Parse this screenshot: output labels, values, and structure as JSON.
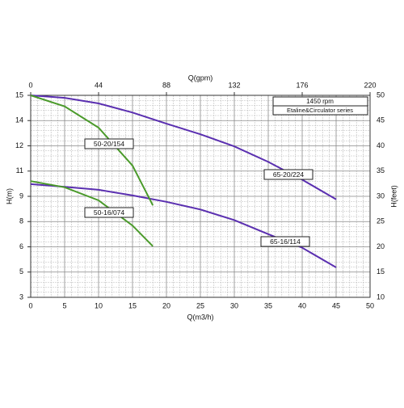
{
  "chart_data": {
    "type": "line",
    "x_label": "Q(m3/h)",
    "x2_label": "Q(gpm)",
    "y_label": "H(m)",
    "y2_label": "H(feet)",
    "xlim": [
      0,
      50
    ],
    "xticks": [
      0,
      5,
      10,
      15,
      20,
      25,
      30,
      35,
      40,
      45,
      50
    ],
    "x2lim": [
      0,
      220
    ],
    "x2ticks": [
      0,
      44,
      88,
      132,
      176,
      220
    ],
    "ylim": [
      3.048,
      15.24
    ],
    "yticks": [
      {
        "value": 3.048,
        "label": "3"
      },
      {
        "value": 4.572,
        "label": "5"
      },
      {
        "value": 6.096,
        "label": "6"
      },
      {
        "value": 7.62,
        "label": "8"
      },
      {
        "value": 9.144,
        "label": "9"
      },
      {
        "value": 10.668,
        "label": "11"
      },
      {
        "value": 12.192,
        "label": "12"
      },
      {
        "value": 13.716,
        "label": "14"
      },
      {
        "value": 15.24,
        "label": "15"
      }
    ],
    "y2lim": [
      10,
      50
    ],
    "y2ticks": [
      10,
      15,
      20,
      25,
      30,
      35,
      40,
      45,
      50
    ],
    "grid": true,
    "annotations": [
      "1450 rpm",
      "Etaline&Circulator series"
    ],
    "series": [
      {
        "name": "65-20/224",
        "color": "#5a2fb0",
        "x": [
          0,
          5,
          10,
          15,
          20,
          25,
          30,
          35,
          40,
          45
        ],
        "values": [
          15.24,
          15.09,
          14.75,
          14.2,
          13.53,
          12.89,
          12.16,
          11.22,
          10.15,
          8.96
        ]
      },
      {
        "name": "65-16/114",
        "color": "#5a2fb0",
        "x": [
          0,
          5,
          10,
          15,
          20,
          25,
          30,
          35,
          40,
          45
        ],
        "values": [
          9.88,
          9.72,
          9.54,
          9.2,
          8.81,
          8.35,
          7.71,
          6.86,
          6.04,
          4.85
        ]
      },
      {
        "name": "50-20/154",
        "color": "#4a9a2a",
        "x": [
          0,
          5,
          10,
          15,
          18
        ],
        "values": [
          15.24,
          14.57,
          13.29,
          11.0,
          8.6
        ]
      },
      {
        "name": "50-16/074",
        "color": "#4a9a2a",
        "x": [
          0,
          5,
          10,
          15,
          18
        ],
        "values": [
          10.06,
          9.69,
          8.9,
          7.38,
          6.13
        ]
      }
    ]
  }
}
